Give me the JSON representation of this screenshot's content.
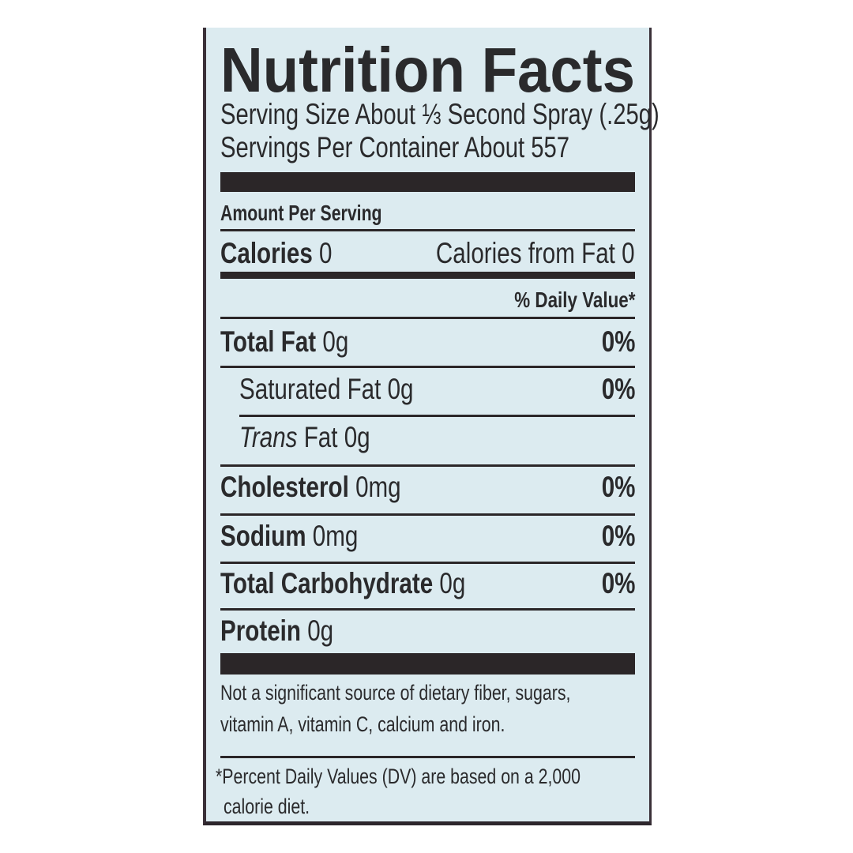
{
  "title": "Nutrition Facts",
  "serving_size": "Serving Size About ⅓ Second Spray (.25g)",
  "servings_per_container": "Servings Per Container About 557",
  "amount_per_serving": "Amount Per Serving",
  "calories": {
    "label": "Calories",
    "value": "0",
    "from_fat_label": "Calories from Fat",
    "from_fat_value": "0"
  },
  "daily_value_header": "% Daily Value*",
  "nutrients": [
    {
      "name": "Total Fat",
      "amount": "0g",
      "dv": "0%"
    },
    {
      "name": "Saturated Fat",
      "amount": "0g",
      "dv": "0%"
    },
    {
      "name": "Trans",
      "name_suffix": "Fat",
      "amount": "0g"
    },
    {
      "name": "Cholesterol",
      "amount": "0mg",
      "dv": "0%"
    },
    {
      "name": "Sodium",
      "amount": "0mg",
      "dv": "0%"
    },
    {
      "name": "Total Carbohydrate",
      "amount": "0g",
      "dv": "0%"
    },
    {
      "name": "Protein",
      "amount": "0g"
    }
  ],
  "footnote_1_line1": "Not a significant source of dietary fiber, sugars,",
  "footnote_1_line2": "vitamin A, vitamin C, calcium and iron.",
  "footnote_2_line1": "*Percent Daily Values (DV) are based on a 2,000",
  "footnote_2_line2": "calorie diet.",
  "colors": {
    "label_background": "#dcebf0",
    "ink": "#2a2a2c"
  }
}
